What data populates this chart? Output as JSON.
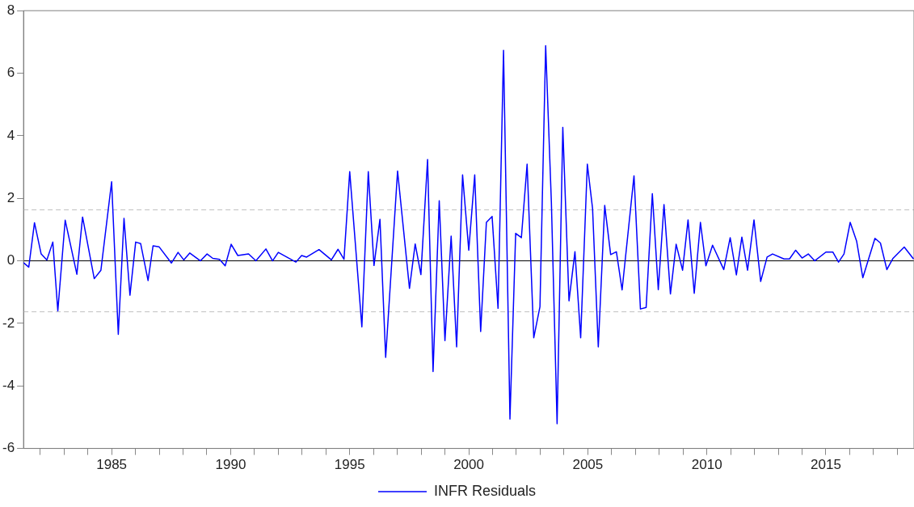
{
  "chart_data": {
    "type": "line",
    "xlim": [
      1981.3,
      2018.7
    ],
    "ylim": [
      -6,
      8
    ],
    "yticks": [
      -6,
      -4,
      -2,
      0,
      2,
      4,
      6,
      8
    ],
    "xticks": [
      {
        "value": 1982,
        "label": null
      },
      {
        "value": 1983,
        "label": null
      },
      {
        "value": 1984,
        "label": null
      },
      1985,
      {
        "value": 1986,
        "label": null
      },
      {
        "value": 1987,
        "label": null
      },
      {
        "value": 1988,
        "label": null
      },
      {
        "value": 1989,
        "label": null
      },
      1990,
      {
        "value": 1991,
        "label": null
      },
      {
        "value": 1992,
        "label": null
      },
      {
        "value": 1993,
        "label": null
      },
      {
        "value": 1994,
        "label": null
      },
      1995,
      {
        "value": 1996,
        "label": null
      },
      {
        "value": 1997,
        "label": null
      },
      {
        "value": 1998,
        "label": null
      },
      {
        "value": 1999,
        "label": null
      },
      2000,
      {
        "value": 2001,
        "label": null
      },
      {
        "value": 2002,
        "label": null
      },
      {
        "value": 2003,
        "label": null
      },
      {
        "value": 2004,
        "label": null
      },
      2005,
      {
        "value": 2006,
        "label": null
      },
      {
        "value": 2007,
        "label": null
      },
      {
        "value": 2008,
        "label": null
      },
      {
        "value": 2009,
        "label": null
      },
      2010,
      {
        "value": 2011,
        "label": null
      },
      {
        "value": 2012,
        "label": null
      },
      {
        "value": 2013,
        "label": null
      },
      {
        "value": 2014,
        "label": null
      },
      2015,
      {
        "value": 2016,
        "label": null
      },
      {
        "value": 2017,
        "label": null
      },
      {
        "value": 2018,
        "label": null
      }
    ],
    "grid": false,
    "legend": "bottom",
    "marker": "none",
    "line_style": "solid",
    "ref_lines": [
      {
        "axis": "y",
        "value": 0,
        "label": null,
        "color": "#000000",
        "line_style": "solid"
      },
      {
        "axis": "y",
        "value": 1.63,
        "label": null,
        "color": "#c0c0c0",
        "line_style": "dashed"
      },
      {
        "axis": "y",
        "value": -1.63,
        "label": null,
        "color": "#c0c0c0",
        "line_style": "dashed"
      }
    ],
    "series": [
      {
        "name": "INFR Residuals",
        "color": "#0000ff",
        "x": [
          1981.3,
          1981.52,
          1981.76,
          1982.04,
          1982.28,
          1982.53,
          1982.74,
          1983.05,
          1983.54,
          1983.78,
          1984.27,
          1984.55,
          1985.0,
          1985.28,
          1985.52,
          1985.77,
          1986.01,
          1986.22,
          1986.53,
          1986.74,
          1986.99,
          1987.51,
          1987.79,
          1988.03,
          1988.28,
          1988.73,
          1989.01,
          1989.25,
          1989.53,
          1989.77,
          1990.02,
          1990.3,
          1990.75,
          1991.06,
          1991.48,
          1991.76,
          1992.0,
          1992.74,
          1992.98,
          1993.19,
          1993.71,
          1994.23,
          1994.51,
          1994.76,
          1995.0,
          1995.51,
          1995.78,
          1996.02,
          1996.27,
          1996.51,
          1997.01,
          1997.51,
          1997.75,
          1997.99,
          1998.27,
          1998.5,
          1998.76,
          1999.0,
          1999.26,
          1999.49,
          1999.74,
          2000.0,
          2000.25,
          2000.5,
          2000.74,
          2000.98,
          2001.23,
          2001.46,
          2001.73,
          2001.97,
          2002.21,
          2002.45,
          2002.73,
          2002.99,
          2003.23,
          2003.47,
          2003.71,
          2003.95,
          2004.21,
          2004.46,
          2004.7,
          2004.98,
          2005.2,
          2005.44,
          2005.71,
          2005.96,
          2006.2,
          2006.44,
          2006.94,
          2007.21,
          2007.45,
          2007.71,
          2007.96,
          2008.2,
          2008.47,
          2008.71,
          2008.98,
          2009.21,
          2009.47,
          2009.73,
          2009.96,
          2010.24,
          2010.71,
          2010.98,
          2011.24,
          2011.47,
          2011.71,
          2011.98,
          2012.26,
          2012.53,
          2012.76,
          2013.24,
          2013.47,
          2013.73,
          2014.0,
          2014.26,
          2014.53,
          2015.0,
          2015.29,
          2015.53,
          2015.76,
          2016.02,
          2016.29,
          2016.55,
          2017.06,
          2017.29,
          2017.56,
          2017.82,
          2018.29,
          2018.68
        ],
        "values": [
          -0.06,
          -0.2,
          1.22,
          0.22,
          0.03,
          0.6,
          -1.6,
          1.3,
          -0.43,
          1.4,
          -0.57,
          -0.3,
          2.53,
          -2.35,
          1.36,
          -1.1,
          0.6,
          0.55,
          -0.63,
          0.48,
          0.45,
          -0.07,
          0.27,
          0.03,
          0.25,
          0,
          0.22,
          0.08,
          0.05,
          -0.16,
          0.53,
          0.17,
          0.22,
          0,
          0.38,
          0,
          0.27,
          -0.04,
          0.17,
          0.12,
          0.36,
          0.03,
          0.37,
          0.05,
          2.85,
          -2.11,
          2.85,
          -0.15,
          1.33,
          -3.09,
          2.87,
          -0.88,
          0.54,
          -0.44,
          3.24,
          -3.54,
          1.92,
          -2.55,
          0.79,
          -2.75,
          2.75,
          0.34,
          2.75,
          -2.26,
          1.23,
          1.42,
          -1.52,
          6.73,
          -5.06,
          0.88,
          0.74,
          3.09,
          -2.46,
          -1.47,
          6.88,
          1.87,
          -5.21,
          4.27,
          -1.28,
          0.29,
          -2.46,
          3.09,
          1.67,
          -2.75,
          1.77,
          0.2,
          0.29,
          -0.93,
          2.72,
          -1.54,
          -1.49,
          2.15,
          -0.92,
          1.8,
          -1.06,
          0.53,
          -0.3,
          1.31,
          -1.04,
          1.23,
          -0.16,
          0.5,
          -0.28,
          0.74,
          -0.45,
          0.76,
          -0.3,
          1.31,
          -0.66,
          0.12,
          0.22,
          0.06,
          0.06,
          0.34,
          0.09,
          0.22,
          0,
          0.28,
          0.28,
          -0.04,
          0.22,
          1.23,
          0.63,
          -0.54,
          0.72,
          0.57,
          -0.28,
          0.08,
          0.44,
          0.06
        ]
      }
    ]
  }
}
